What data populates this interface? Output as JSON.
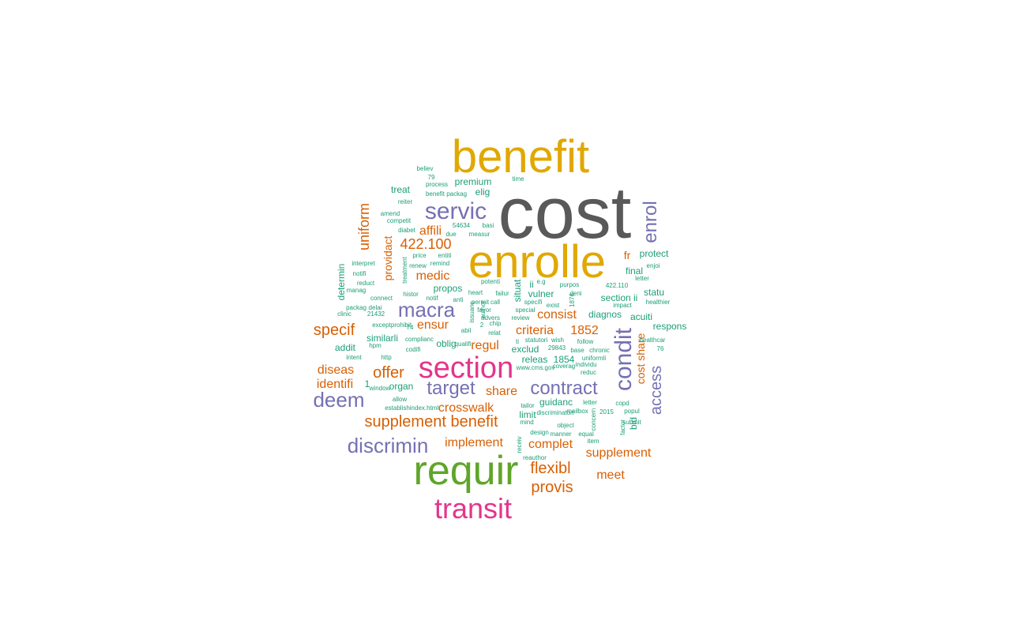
{
  "palette": {
    "grey": "#595959",
    "gold": "#e0a800",
    "green": "#5fa52a",
    "magenta": "#e3358c",
    "purple": "#7570b3",
    "orange": "#d95f02",
    "teal": "#1b9e77"
  },
  "words": [
    {
      "text": "cost",
      "color": "grey"
    },
    {
      "text": "benefit",
      "color": "gold"
    },
    {
      "text": "enrolle",
      "color": "gold"
    },
    {
      "text": "requir",
      "color": "green"
    },
    {
      "text": "section",
      "color": "magenta"
    },
    {
      "text": "transit",
      "color": "magenta"
    },
    {
      "text": "servic",
      "color": "purple"
    },
    {
      "text": "macra",
      "color": "purple"
    },
    {
      "text": "target",
      "color": "purple"
    },
    {
      "text": "contract",
      "color": "purple"
    },
    {
      "text": "deem",
      "color": "purple"
    },
    {
      "text": "discrimin",
      "color": "purple"
    },
    {
      "text": "condit",
      "color": "purple"
    },
    {
      "text": "enrol",
      "color": "purple"
    },
    {
      "text": "access",
      "color": "purple"
    },
    {
      "text": "supplement benefit",
      "color": "orange"
    },
    {
      "text": "uniform",
      "color": "orange"
    },
    {
      "text": "specif",
      "color": "orange"
    },
    {
      "text": "offer",
      "color": "orange"
    },
    {
      "text": "flexibl",
      "color": "orange"
    },
    {
      "text": "provis",
      "color": "orange"
    },
    {
      "text": "crosswalk",
      "color": "orange"
    },
    {
      "text": "implement",
      "color": "orange"
    },
    {
      "text": "complet",
      "color": "orange"
    },
    {
      "text": "supplement",
      "color": "orange"
    },
    {
      "text": "meet",
      "color": "orange"
    },
    {
      "text": "diseas",
      "color": "orange"
    },
    {
      "text": "identifi",
      "color": "orange"
    },
    {
      "text": "422.100",
      "color": "orange"
    },
    {
      "text": "affili",
      "color": "orange"
    },
    {
      "text": "medic",
      "color": "orange"
    },
    {
      "text": "consist",
      "color": "orange"
    },
    {
      "text": "criteria",
      "color": "orange"
    },
    {
      "text": "1852",
      "color": "orange"
    },
    {
      "text": "regul",
      "color": "orange"
    },
    {
      "text": "share",
      "color": "orange"
    },
    {
      "text": "ensur",
      "color": "orange"
    },
    {
      "text": "providact",
      "color": "orange"
    },
    {
      "text": "cost share",
      "color": "orange"
    },
    {
      "text": "fr",
      "color": "orange"
    },
    {
      "text": "premium",
      "color": "teal"
    },
    {
      "text": "treat",
      "color": "teal"
    },
    {
      "text": "elig",
      "color": "teal"
    },
    {
      "text": "propos",
      "color": "teal"
    },
    {
      "text": "vulner",
      "color": "teal"
    },
    {
      "text": "diagnos",
      "color": "teal"
    },
    {
      "text": "section ii",
      "color": "teal"
    },
    {
      "text": "statu",
      "color": "teal"
    },
    {
      "text": "acuiti",
      "color": "teal"
    },
    {
      "text": "respons",
      "color": "teal"
    },
    {
      "text": "protect",
      "color": "teal"
    },
    {
      "text": "final",
      "color": "teal"
    },
    {
      "text": "similarli",
      "color": "teal"
    },
    {
      "text": "addit",
      "color": "teal"
    },
    {
      "text": "oblig",
      "color": "teal"
    },
    {
      "text": "exclud",
      "color": "teal"
    },
    {
      "text": "releas",
      "color": "teal"
    },
    {
      "text": "1854",
      "color": "teal"
    },
    {
      "text": "organ",
      "color": "teal"
    },
    {
      "text": "guidanc",
      "color": "teal"
    },
    {
      "text": "limit",
      "color": "teal"
    },
    {
      "text": "determin",
      "color": "teal"
    },
    {
      "text": "situat",
      "color": "teal"
    },
    {
      "text": "bid",
      "color": "teal"
    },
    {
      "text": "ii",
      "color": "teal"
    },
    {
      "text": "1",
      "color": "teal"
    },
    {
      "text": "believ",
      "color": "teal"
    },
    {
      "text": "79",
      "color": "teal"
    },
    {
      "text": "process",
      "color": "teal"
    },
    {
      "text": "time",
      "color": "teal"
    },
    {
      "text": "benefit packag",
      "color": "teal"
    },
    {
      "text": "reiter",
      "color": "teal"
    },
    {
      "text": "amend",
      "color": "teal"
    },
    {
      "text": "competit",
      "color": "teal"
    },
    {
      "text": "diabet",
      "color": "teal"
    },
    {
      "text": "54634",
      "color": "teal"
    },
    {
      "text": "basi",
      "color": "teal"
    },
    {
      "text": "due",
      "color": "teal"
    },
    {
      "text": "measur",
      "color": "teal"
    },
    {
      "text": "price",
      "color": "teal"
    },
    {
      "text": "entiti",
      "color": "teal"
    },
    {
      "text": "interpret",
      "color": "teal"
    },
    {
      "text": "renew",
      "color": "teal"
    },
    {
      "text": "remind",
      "color": "teal"
    },
    {
      "text": "notifi",
      "color": "teal"
    },
    {
      "text": "treatment",
      "color": "teal"
    },
    {
      "text": "potenti",
      "color": "teal"
    },
    {
      "text": "e.g",
      "color": "teal"
    },
    {
      "text": "purpos",
      "color": "teal"
    },
    {
      "text": "422.110",
      "color": "teal"
    },
    {
      "text": "enjoi",
      "color": "teal"
    },
    {
      "text": "letter",
      "color": "teal"
    },
    {
      "text": "reduct",
      "color": "teal"
    },
    {
      "text": "manag",
      "color": "teal"
    },
    {
      "text": "histor",
      "color": "teal"
    },
    {
      "text": "heart",
      "color": "teal"
    },
    {
      "text": "failur",
      "color": "teal"
    },
    {
      "text": "deni",
      "color": "teal"
    },
    {
      "text": "connect",
      "color": "teal"
    },
    {
      "text": "notif",
      "color": "teal"
    },
    {
      "text": "anti",
      "color": "teal"
    },
    {
      "text": "permit",
      "color": "teal"
    },
    {
      "text": "call",
      "color": "teal"
    },
    {
      "text": "specifi",
      "color": "teal"
    },
    {
      "text": "1876",
      "color": "teal"
    },
    {
      "text": "impact",
      "color": "teal"
    },
    {
      "text": "healthier",
      "color": "teal"
    },
    {
      "text": "packag",
      "color": "teal"
    },
    {
      "text": "delai",
      "color": "teal"
    },
    {
      "text": "favor",
      "color": "teal"
    },
    {
      "text": "special",
      "color": "teal"
    },
    {
      "text": "exist",
      "color": "teal"
    },
    {
      "text": "clinic",
      "color": "teal"
    },
    {
      "text": "21432",
      "color": "teal"
    },
    {
      "text": "advers",
      "color": "teal"
    },
    {
      "text": "review",
      "color": "teal"
    },
    {
      "text": "except",
      "color": "teal"
    },
    {
      "text": "prohibit",
      "color": "teal"
    },
    {
      "text": "74",
      "color": "teal"
    },
    {
      "text": "2",
      "color": "teal"
    },
    {
      "text": "chip",
      "color": "teal"
    },
    {
      "text": "abil",
      "color": "teal"
    },
    {
      "text": "relat",
      "color": "teal"
    },
    {
      "text": "complianc",
      "color": "teal"
    },
    {
      "text": "qualifi",
      "color": "teal"
    },
    {
      "text": "ti",
      "color": "teal"
    },
    {
      "text": "statutori",
      "color": "teal"
    },
    {
      "text": "wish",
      "color": "teal"
    },
    {
      "text": "follow",
      "color": "teal"
    },
    {
      "text": "healthcar",
      "color": "teal"
    },
    {
      "text": "hpm",
      "color": "teal"
    },
    {
      "text": "29843",
      "color": "teal"
    },
    {
      "text": "base",
      "color": "teal"
    },
    {
      "text": "chronic",
      "color": "teal"
    },
    {
      "text": "76",
      "color": "teal"
    },
    {
      "text": "codifi",
      "color": "teal"
    },
    {
      "text": "uniformli",
      "color": "teal"
    },
    {
      "text": "intent",
      "color": "teal"
    },
    {
      "text": "http",
      "color": "teal"
    },
    {
      "text": "www.cms.gov",
      "color": "teal"
    },
    {
      "text": "coverag",
      "color": "teal"
    },
    {
      "text": "individu",
      "color": "teal"
    },
    {
      "text": "reduc",
      "color": "teal"
    },
    {
      "text": "window",
      "color": "teal"
    },
    {
      "text": "allow",
      "color": "teal"
    },
    {
      "text": "establish",
      "color": "teal"
    },
    {
      "text": "index.html",
      "color": "teal"
    },
    {
      "text": "tailor",
      "color": "teal"
    },
    {
      "text": "letter",
      "color": "teal"
    },
    {
      "text": "copd",
      "color": "teal"
    },
    {
      "text": "discriminatori",
      "color": "teal"
    },
    {
      "text": "mailbox",
      "color": "teal"
    },
    {
      "text": "2015",
      "color": "teal"
    },
    {
      "text": "popul",
      "color": "teal"
    },
    {
      "text": "mind",
      "color": "teal"
    },
    {
      "text": "object",
      "color": "teal"
    },
    {
      "text": "concern",
      "color": "teal"
    },
    {
      "text": "submit",
      "color": "teal"
    },
    {
      "text": "factor",
      "color": "teal"
    },
    {
      "text": "design",
      "color": "teal"
    },
    {
      "text": "manner",
      "color": "teal"
    },
    {
      "text": "equal",
      "color": "teal"
    },
    {
      "text": "receiv",
      "color": "teal"
    },
    {
      "text": "item",
      "color": "teal"
    },
    {
      "text": "reauthor",
      "color": "teal"
    },
    {
      "text": "author",
      "color": "teal"
    },
    {
      "text": "issuanc",
      "color": "teal"
    },
    {
      "text": "lin",
      "color": "teal"
    }
  ]
}
